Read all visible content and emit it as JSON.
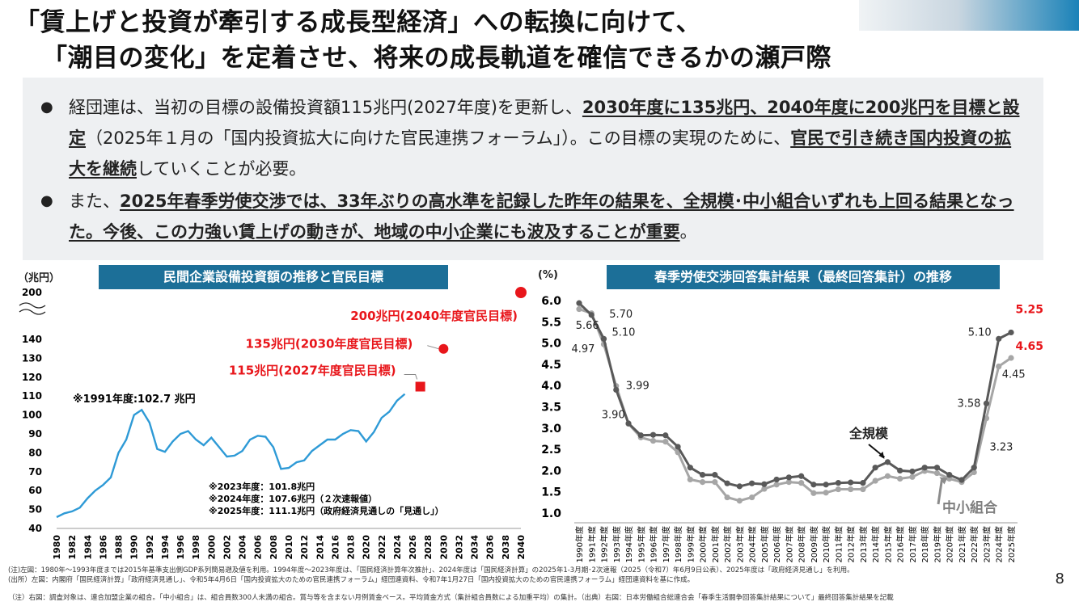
{
  "header": {
    "title_line1": "「賃上げと投資が牽引する成長型経済」への転換に向けて、",
    "title_line2": "「潮目の変化」を定着させ、将来の成長軌道を確信できるかの瀬戸際"
  },
  "bullets": [
    {
      "marker": "●",
      "parts": [
        {
          "text": "経団連は、当初の目標の設備投資額115兆円(2027年度)を更新し、",
          "bold": false
        },
        {
          "text": "2030年度に135兆円、2040年度に200兆円を目標と設定",
          "bold": true
        },
        {
          "text": "（2025年１月の「国内投資拡大に向けた官民連携フォーラム」）。この目標の実現のために、",
          "bold": false
        },
        {
          "text": "官民で引き続き国内投資の拡大を継続",
          "bold": true
        },
        {
          "text": "していくことが必要。",
          "bold": false
        }
      ]
    },
    {
      "marker": "●",
      "parts": [
        {
          "text": "また、",
          "bold": false
        },
        {
          "text": "2025年春季労使交渉では、33年ぶりの高水準を記録した昨年の結果を、全規模･中小組合いずれも上回る結果となった。今後、この力強い賃上げの動きが、地域の中小企業にも波及することが重要",
          "bold": true
        },
        {
          "text": "。",
          "bold": false
        }
      ]
    }
  ],
  "chart_data": [
    {
      "type": "line",
      "title": "民間企業設備投資額の推移と官民目標",
      "ylabel": "（兆円）",
      "ylim": [
        40,
        200
      ],
      "y_ticks": [
        "40",
        "50",
        "60",
        "70",
        "80",
        "90",
        "100",
        "110",
        "120",
        "130",
        "140",
        "200"
      ],
      "x_ticks": [
        "1980",
        "1982",
        "1984",
        "1986",
        "1988",
        "1990",
        "1992",
        "1994",
        "1996",
        "1998",
        "2000",
        "2002",
        "2004",
        "2006",
        "2008",
        "2010",
        "2012",
        "2014",
        "2016",
        "2018",
        "2020",
        "2022",
        "2024",
        "2026",
        "2028",
        "2030",
        "2032",
        "2034",
        "2036",
        "2038",
        "2040"
      ],
      "series": [
        {
          "x": [
            1980,
            1981,
            1982,
            1983,
            1984,
            1985,
            1986,
            1987,
            1988,
            1989,
            1990,
            1991,
            1992,
            1993,
            1994,
            1995,
            1996,
            1997,
            1998,
            1999,
            2000,
            2001,
            2002,
            2003,
            2004,
            2005,
            2006,
            2007,
            2008,
            2009,
            2010,
            2011,
            2012,
            2013,
            2014,
            2015,
            2016,
            2017,
            2018,
            2019,
            2020,
            2021,
            2022,
            2023,
            2024,
            2025
          ],
          "y": [
            46,
            48,
            49,
            51,
            56,
            60,
            63,
            67,
            80,
            87,
            100,
            102.7,
            96,
            82,
            80.5,
            86,
            90,
            91.5,
            87,
            84,
            88,
            83,
            78,
            78.5,
            81,
            87,
            89,
            88.5,
            83,
            71.5,
            72,
            75,
            76,
            81,
            84,
            87,
            87,
            90,
            92,
            91.5,
            86,
            91,
            98.5,
            101.8,
            107.6,
            111.1
          ]
        }
      ],
      "targets": [
        {
          "x": 2027,
          "y": 115,
          "label": "115兆円(2027年度官民目標)"
        },
        {
          "x": 2030,
          "y": 135,
          "label": "135兆円(2030年度官民目標)"
        },
        {
          "x": 2040,
          "y": 200,
          "label": "200兆円(2040年度官民目標)"
        }
      ],
      "annotations": {
        "peak_1991": "※1991年度:102.7 兆円",
        "notes": [
          "※2023年度：101.8兆円",
          "※2024年度：107.6兆円（２次速報値）",
          "※2025年度：111.1兆円（政府経済見通しの「見通し」）"
        ]
      }
    },
    {
      "type": "line",
      "title": "春季労使交渉回答集計結果（最終回答集計）の推移",
      "ylabel": "(%)",
      "ylim": [
        1.0,
        6.0
      ],
      "y_ticks": [
        "6.0",
        "5.5",
        "5.0",
        "4.5",
        "4.0",
        "3.5",
        "3.0",
        "2.5",
        "2.0",
        "1.5",
        "1.0"
      ],
      "categories": [
        "1990年度",
        "1991年度",
        "1992年度",
        "1993年度",
        "1994年度",
        "1995年度",
        "1996年度",
        "1997年度",
        "1998年度",
        "1999年度",
        "2000年度",
        "2001年度",
        "2002年度",
        "2003年度",
        "2004年度",
        "2005年度",
        "2006年度",
        "2007年度",
        "2008年度",
        "2009年度",
        "2010年度",
        "2011年度",
        "2012年度",
        "2013年度",
        "2014年度",
        "2015年度",
        "2016年度",
        "2017年度",
        "2018年度",
        "2019年度",
        "2020年度",
        "2021年度",
        "2022年度",
        "2023年度",
        "2024年度",
        "2025年度"
      ],
      "series": [
        {
          "name": "全規模",
          "color": "#595959",
          "values": [
            5.94,
            5.66,
            5.1,
            3.9,
            3.11,
            2.83,
            2.84,
            2.83,
            2.56,
            2.07,
            1.9,
            1.9,
            1.7,
            1.63,
            1.7,
            1.68,
            1.79,
            1.84,
            1.87,
            1.67,
            1.67,
            1.71,
            1.72,
            1.71,
            2.07,
            2.2,
            2.0,
            1.98,
            2.07,
            2.07,
            1.9,
            1.78,
            2.07,
            3.58,
            5.1,
            5.25
          ]
        },
        {
          "name": "中小組合",
          "color": "#a6a6a6",
          "values": [
            5.8,
            5.7,
            4.97,
            3.99,
            3.1,
            2.78,
            2.7,
            2.68,
            2.43,
            1.79,
            1.73,
            1.73,
            1.37,
            1.29,
            1.37,
            1.57,
            1.67,
            1.73,
            1.71,
            1.47,
            1.48,
            1.56,
            1.56,
            1.56,
            1.76,
            1.87,
            1.81,
            1.85,
            1.99,
            1.94,
            1.81,
            1.73,
            1.96,
            3.23,
            4.45,
            4.65
          ]
        }
      ],
      "data_labels": [
        "5.70",
        "5.66",
        "4.97",
        "5.10",
        "3.99",
        "3.90",
        "5.10",
        "3.58",
        "3.23",
        "4.45",
        "5.25",
        "4.65"
      ],
      "series_labels": [
        "全規模",
        "中小組合"
      ]
    }
  ],
  "footnotes": {
    "line1": "(注)左図：1980年～1993年度までは2015年基準支出側GDP系列簡易遡及値を利用。1994年度～2023年度は、「国民経済計算年次推計」、2024年度は「国民経済計算」の2025年1-3月期･2次速報（2025（令和7）年6月9日公表）、2025年度は「政府経済見通し」を利用。",
    "line2": "(出所）左図：内閣府「国民経済計算」「政府経済見通し」、令和5年4月6日「国内投資拡大のための官民連携フォーラム」経団連資料、令和7年1月27日「国内投資拡大のための官民連携フォーラム」経団連資料を基に作成。",
    "line3": "（注）右図：調査対象は、連合加盟企業の組合。「中小組合」は、組合員数300人未満の組合。賞与等を含まない月例賃金ベース。平均賃金方式（集計組合員数による加重平均）の集計。（出典）右図：日本労働組合総連合会「春季生活闘争回答集計結果について」最終回答集計結果を記載"
  },
  "page_number": "8"
}
